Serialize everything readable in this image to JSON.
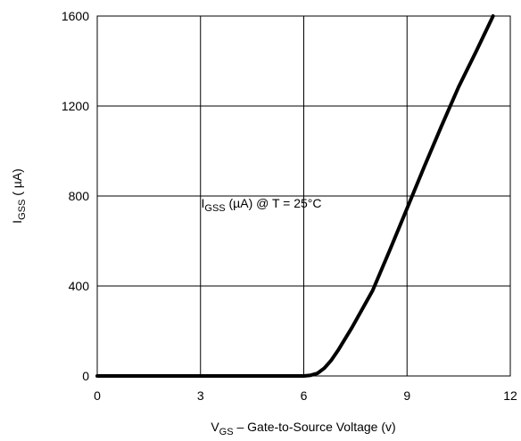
{
  "chart_data": {
    "type": "line",
    "title": "",
    "xlabel": {
      "main": "V",
      "sub": "GS",
      "rest": " – Gate-to-Source Voltage (v)"
    },
    "ylabel": {
      "main": "I",
      "sub": "GSS",
      "rest": " ( µA)"
    },
    "annotation": {
      "main": "I",
      "sub": "GSS",
      "rest": " (µA) @ T = 25°C",
      "x": 6,
      "y": 740
    },
    "xlim": [
      0,
      12
    ],
    "ylim": [
      0,
      1600
    ],
    "xticks": [
      0,
      3,
      6,
      9,
      12
    ],
    "xtick_labels": [
      "0",
      "3",
      "6",
      "9",
      "12"
    ],
    "yticks": [
      0,
      400,
      800,
      1200,
      1600
    ],
    "ytick_labels": [
      "0",
      "400",
      "800",
      "1200",
      "1600"
    ],
    "grid": true,
    "series": [
      {
        "color": "#000000",
        "x": [
          0,
          3,
          6,
          6.2,
          6.4,
          6.6,
          6.8,
          7.0,
          7.4,
          8.0,
          8.5,
          9.0,
          9.5,
          10.0,
          10.5,
          11.0,
          11.5
        ],
        "y": [
          0,
          0,
          0,
          3,
          12,
          35,
          70,
          115,
          215,
          380,
          560,
          745,
          930,
          1110,
          1285,
          1440,
          1600
        ]
      }
    ]
  }
}
